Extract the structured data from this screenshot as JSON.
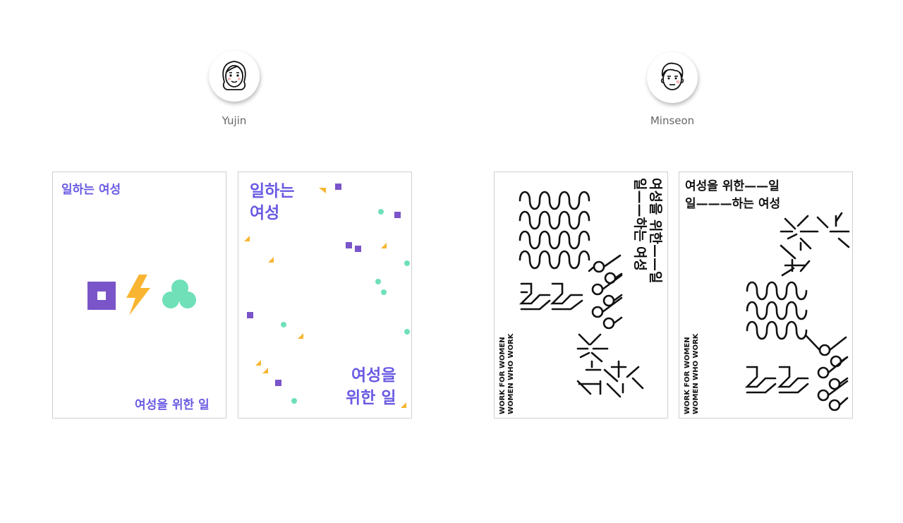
{
  "designers": [
    {
      "name": "Yujin"
    },
    {
      "name": "Minseon"
    }
  ],
  "posters": {
    "yujin_1": {
      "top": "일하는 여성",
      "bottom": "여성을 위한 일"
    },
    "yujin_2": {
      "top_line1": "일하는",
      "top_line2": "여성",
      "bottom_line1": "여성을",
      "bottom_line2": "위한 일"
    },
    "minseon_1": {
      "vertical_line1": "여성을 위한——일",
      "vertical_line2": "일——하는 여성",
      "side_line1": "WORK FOR WOMEN",
      "side_line2": "WOMEN WHO WORK"
    },
    "minseon_2": {
      "line1": "여성을 위한——일",
      "line2": "일———하는 여성",
      "side_line1": "WORK FOR WOMEN",
      "side_line2": "WOMEN WHO WORK"
    }
  },
  "colors": {
    "purple": "#7a55c9",
    "text_purple": "#6a5be3",
    "yellow": "#f9b531",
    "mint": "#6fe0b8",
    "black": "#111111"
  },
  "icons": [
    "woman-face-icon",
    "man-face-icon",
    "square-shape-icon",
    "lightning-bolt-icon",
    "clover-shape-icon"
  ]
}
